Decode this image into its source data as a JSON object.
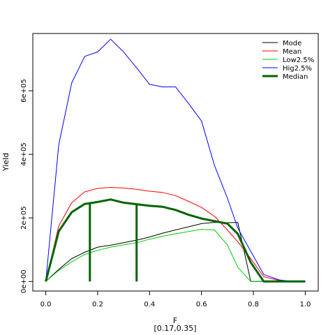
{
  "chart_data": {
    "type": "line",
    "xlabel": "F",
    "xlabel_sub": "[0.17,0.35]",
    "ylabel": "Yield",
    "xlim": [
      -0.05,
      1.05
    ],
    "ylim": [
      -30000,
      780000
    ],
    "x_ticks": [
      0,
      0.2,
      0.4,
      0.6,
      0.8,
      1.0
    ],
    "x_tick_labels": [
      "0.0",
      "0.2",
      "0.4",
      "0.6",
      "0.8",
      "1.0"
    ],
    "y_ticks": [
      0,
      200000,
      400000,
      600000
    ],
    "y_tick_labels": [
      "0e+00",
      "2e+05",
      "4e+05",
      "6e+05"
    ],
    "legend_position": "top-right",
    "series": [
      {
        "name": "Mode",
        "color": "#000000",
        "line_width": 1,
        "x": [
          0,
          0.05,
          0.1,
          0.15,
          0.2,
          0.25,
          0.3,
          0.35,
          0.4,
          0.45,
          0.5,
          0.55,
          0.6,
          0.65,
          0.7,
          0.74,
          0.79,
          0.84,
          0.9,
          1.0
        ],
        "values": [
          0,
          38000,
          72000,
          92000,
          108000,
          114000,
          122000,
          130000,
          140000,
          152000,
          162000,
          172000,
          182000,
          186000,
          185000,
          186000,
          0,
          0,
          0,
          0
        ]
      },
      {
        "name": "Mean",
        "color": "#ff0000",
        "line_width": 1,
        "x": [
          0,
          0.05,
          0.1,
          0.15,
          0.2,
          0.25,
          0.3,
          0.35,
          0.4,
          0.45,
          0.5,
          0.55,
          0.6,
          0.65,
          0.7,
          0.74,
          0.79,
          0.84,
          0.9,
          1.0
        ],
        "values": [
          0,
          175000,
          248000,
          282000,
          293000,
          296000,
          294000,
          290000,
          284000,
          280000,
          270000,
          252000,
          233000,
          205000,
          162000,
          125000,
          72000,
          15000,
          3000,
          0
        ]
      },
      {
        "name": "Low2.5%",
        "color": "#00cc00",
        "line_width": 1,
        "x": [
          0,
          0.05,
          0.1,
          0.15,
          0.2,
          0.25,
          0.3,
          0.35,
          0.4,
          0.45,
          0.5,
          0.55,
          0.6,
          0.65,
          0.7,
          0.74,
          0.79,
          0.84,
          0.9,
          1.0
        ],
        "values": [
          0,
          35000,
          62000,
          85000,
          98000,
          108000,
          115000,
          122000,
          133000,
          142000,
          150000,
          157000,
          164000,
          162000,
          115000,
          45000,
          0,
          0,
          0,
          0
        ]
      },
      {
        "name": "Hig2.5%",
        "color": "#0000ff",
        "line_width": 1,
        "x": [
          0,
          0.05,
          0.1,
          0.15,
          0.2,
          0.25,
          0.3,
          0.35,
          0.4,
          0.45,
          0.5,
          0.55,
          0.6,
          0.65,
          0.7,
          0.74,
          0.79,
          0.84,
          0.9,
          0.95,
          1.0
        ],
        "values": [
          0,
          430000,
          625000,
          708000,
          722000,
          762000,
          722000,
          672000,
          620000,
          612000,
          612000,
          560000,
          505000,
          365000,
          262000,
          168000,
          95000,
          22000,
          5000,
          0,
          0
        ]
      },
      {
        "name": "Median",
        "color": "#006400",
        "line_width": 3,
        "x": [
          0,
          0.05,
          0.1,
          0.15,
          0.2,
          0.25,
          0.3,
          0.35,
          0.4,
          0.45,
          0.5,
          0.55,
          0.6,
          0.65,
          0.7,
          0.74,
          0.79,
          0.84,
          0.9,
          1.0
        ],
        "values": [
          0,
          158000,
          218000,
          244000,
          250000,
          258000,
          248000,
          243000,
          238000,
          235000,
          225000,
          210000,
          198000,
          190000,
          182000,
          150000,
          60000,
          0,
          0,
          0
        ]
      }
    ],
    "vertical_markers": [
      {
        "x": 0.17,
        "from": 0,
        "to": 244000,
        "color": "#006400"
      },
      {
        "x": 0.35,
        "from": 0,
        "to": 243000,
        "color": "#006400"
      }
    ]
  }
}
